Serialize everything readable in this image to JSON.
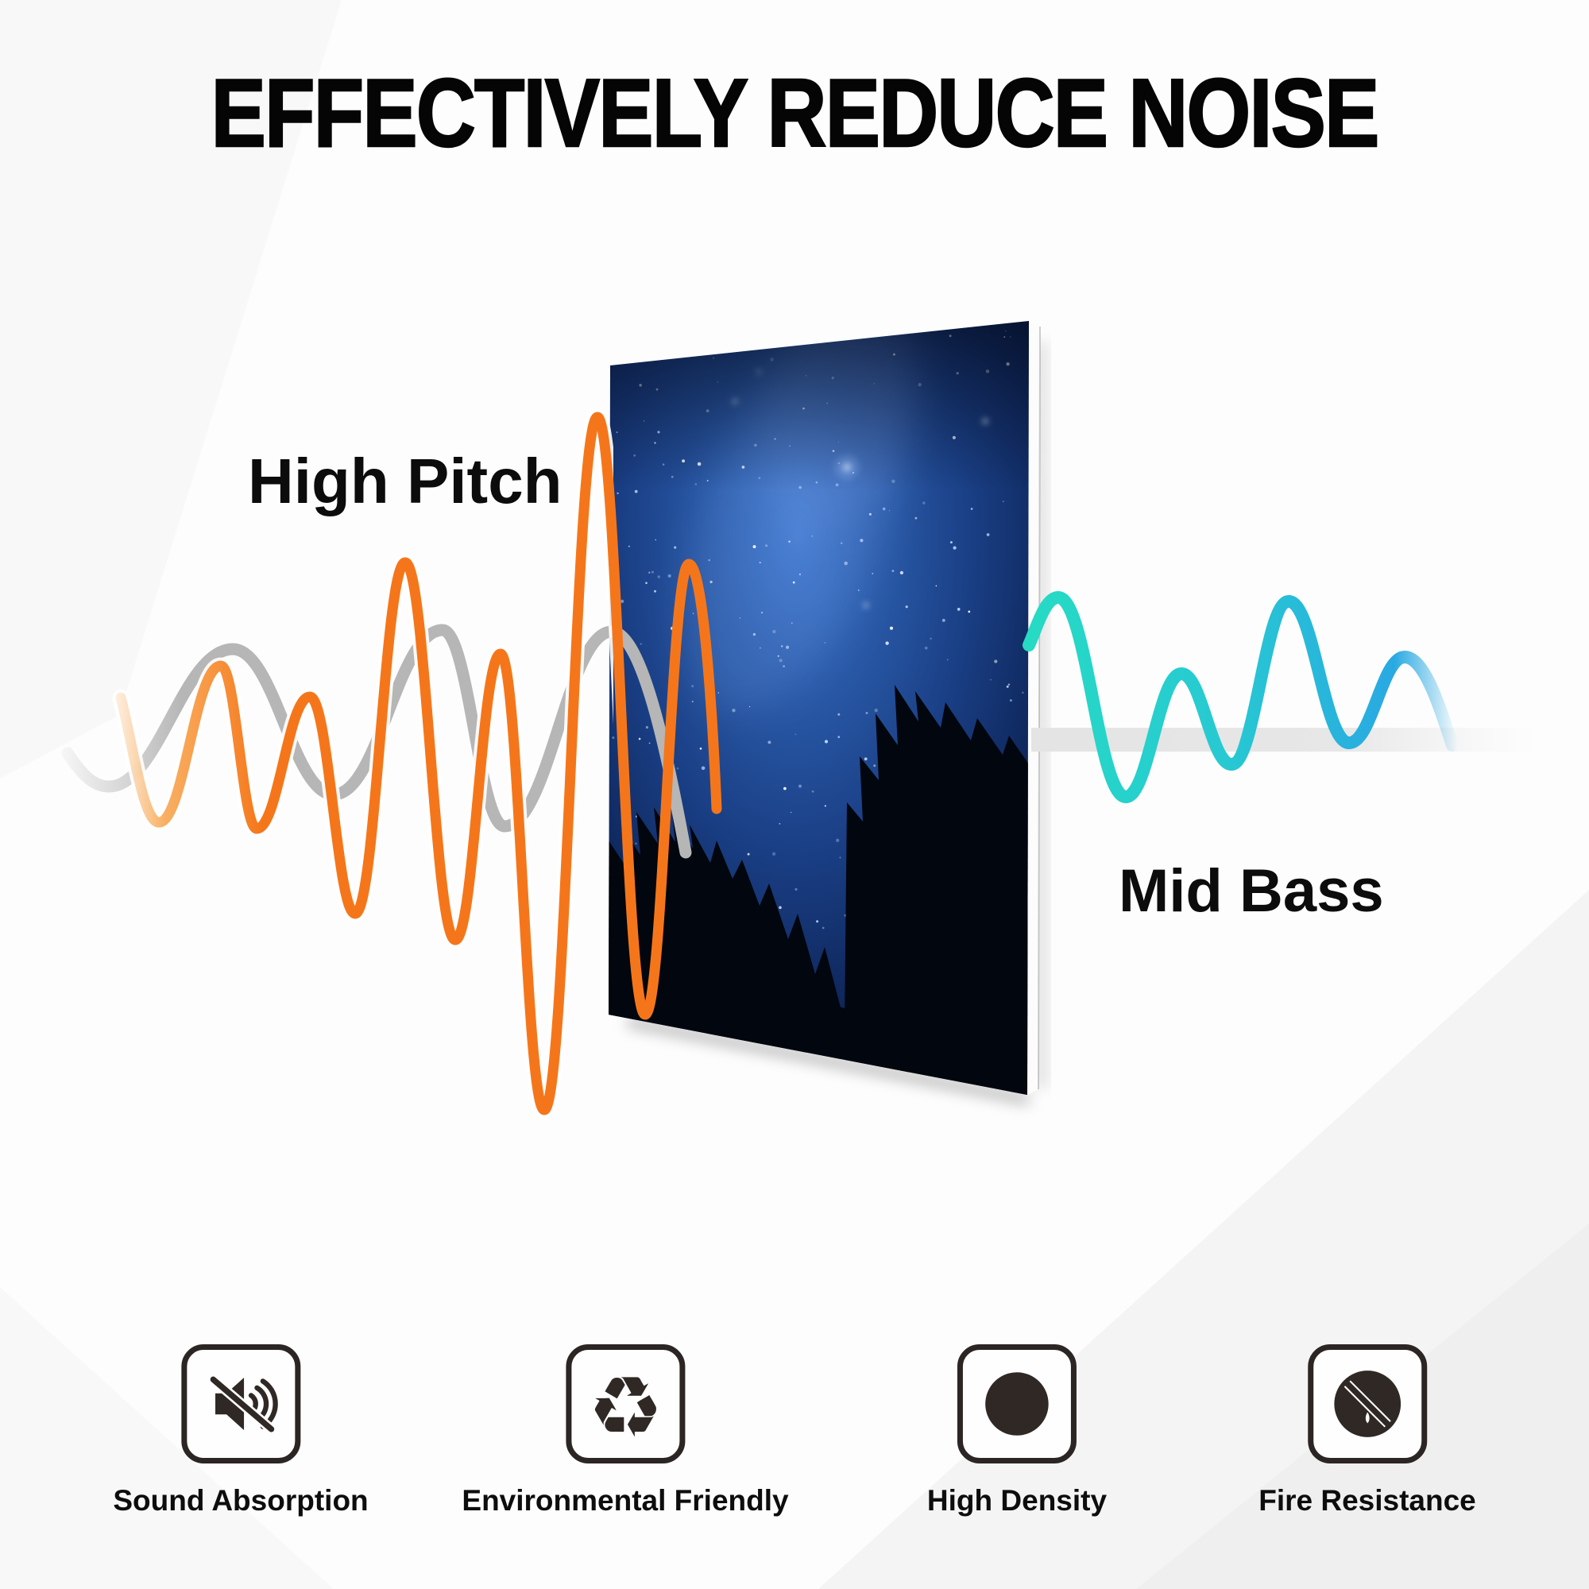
{
  "title": "EFFECTIVELY REDUCE NOISE",
  "diagram": {
    "left_wave_label": "High Pitch",
    "right_wave_label": "Mid Bass",
    "panel_image": "starry-night-forest-acoustic-panel"
  },
  "features": [
    {
      "icon": "muted-speaker-icon",
      "label": "Sound Absorption"
    },
    {
      "icon": "recycle-icon",
      "label": "Environmental Friendly",
      "glyph": "♻"
    },
    {
      "icon": "perforated-circle-icon",
      "label": "High Density"
    },
    {
      "icon": "no-fire-icon",
      "label": "Fire Resistance"
    }
  ],
  "colors": {
    "high_pitch_wave": "#F5761A",
    "residual_wave": "#B9B9B9",
    "mid_bass_wave_start": "#26DAC4",
    "mid_bass_wave_end": "#29A9E2",
    "text": "#111111"
  }
}
